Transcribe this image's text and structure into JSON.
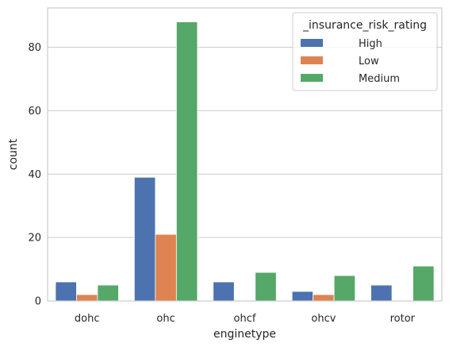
{
  "chart_data": {
    "type": "bar",
    "categories": [
      "dohc",
      "ohc",
      "ohcf",
      "ohcv",
      "rotor"
    ],
    "series": [
      {
        "name": "High",
        "values": [
          6,
          39,
          6,
          3,
          5
        ],
        "color": "#4c72b0"
      },
      {
        "name": "Low",
        "values": [
          2,
          21,
          0,
          2,
          0
        ],
        "color": "#dd8452"
      },
      {
        "name": "Medium",
        "values": [
          5,
          88,
          9,
          8,
          11
        ],
        "color": "#55a868"
      }
    ],
    "xlabel": "enginetype",
    "ylabel": "count",
    "ylim": [
      0,
      92.4
    ],
    "yticks": [
      0,
      20,
      40,
      60,
      80
    ],
    "grid": true,
    "legend": {
      "title": "_insurance_risk_rating",
      "position": "top-right"
    }
  }
}
